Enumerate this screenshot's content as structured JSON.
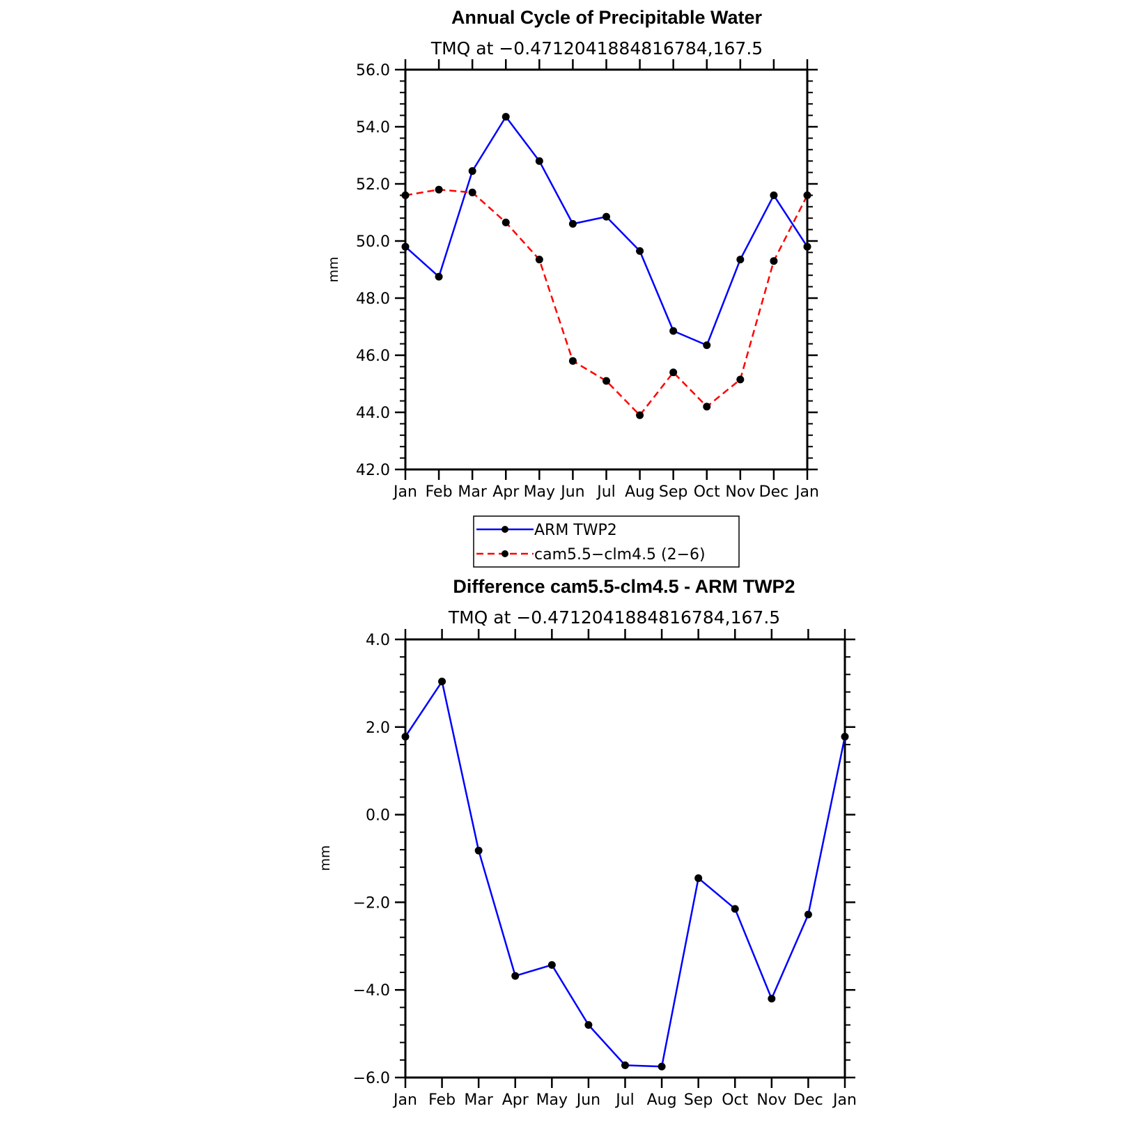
{
  "chart_data": [
    {
      "type": "line",
      "title": "Annual Cycle of Precipitable Water",
      "subtitle": "TMQ at −0.4712041884816784,167.5",
      "xlabel": "",
      "ylabel": "mm",
      "categories": [
        "Jan",
        "Feb",
        "Mar",
        "Apr",
        "May",
        "Jun",
        "Jul",
        "Aug",
        "Sep",
        "Oct",
        "Nov",
        "Dec",
        "Jan"
      ],
      "ylim": [
        42.0,
        56.0
      ],
      "yticks": [
        "42.0",
        "44.0",
        "46.0",
        "48.0",
        "50.0",
        "52.0",
        "54.0",
        "56.0"
      ],
      "grid": false,
      "legend": "below",
      "series": [
        {
          "name": "ARM TWP2",
          "color": "#0000ff",
          "dash": "solid",
          "values": [
            49.8,
            48.75,
            52.45,
            54.35,
            52.8,
            50.6,
            50.85,
            49.65,
            46.85,
            46.35,
            49.35,
            51.6,
            49.8
          ]
        },
        {
          "name": "cam5.5−clm4.5 (2−6)",
          "color": "#ff0000",
          "dash": "dashed",
          "values": [
            51.6,
            51.8,
            51.7,
            50.65,
            49.35,
            45.8,
            45.1,
            43.9,
            45.4,
            44.2,
            45.15,
            49.3,
            51.6
          ]
        }
      ]
    },
    {
      "type": "line",
      "title": "Difference cam5.5-clm4.5 - ARM TWP2",
      "subtitle": "TMQ at −0.4712041884816784,167.5",
      "xlabel": "",
      "ylabel": "mm",
      "categories": [
        "Jan",
        "Feb",
        "Mar",
        "Apr",
        "May",
        "Jun",
        "Jul",
        "Aug",
        "Sep",
        "Oct",
        "Nov",
        "Dec",
        "Jan"
      ],
      "ylim": [
        -6.0,
        4.0
      ],
      "yticks": [
        "−6.0",
        "−4.0",
        "−2.0",
        "0.0",
        "2.0",
        "4.0"
      ],
      "grid": false,
      "legend": "none",
      "series": [
        {
          "color": "#0000ff",
          "dash": "solid",
          "values": [
            1.78,
            3.04,
            -0.82,
            -3.68,
            -3.43,
            -4.8,
            -5.72,
            -5.75,
            -1.45,
            -2.15,
            -4.2,
            -2.28,
            1.78
          ]
        }
      ]
    }
  ]
}
